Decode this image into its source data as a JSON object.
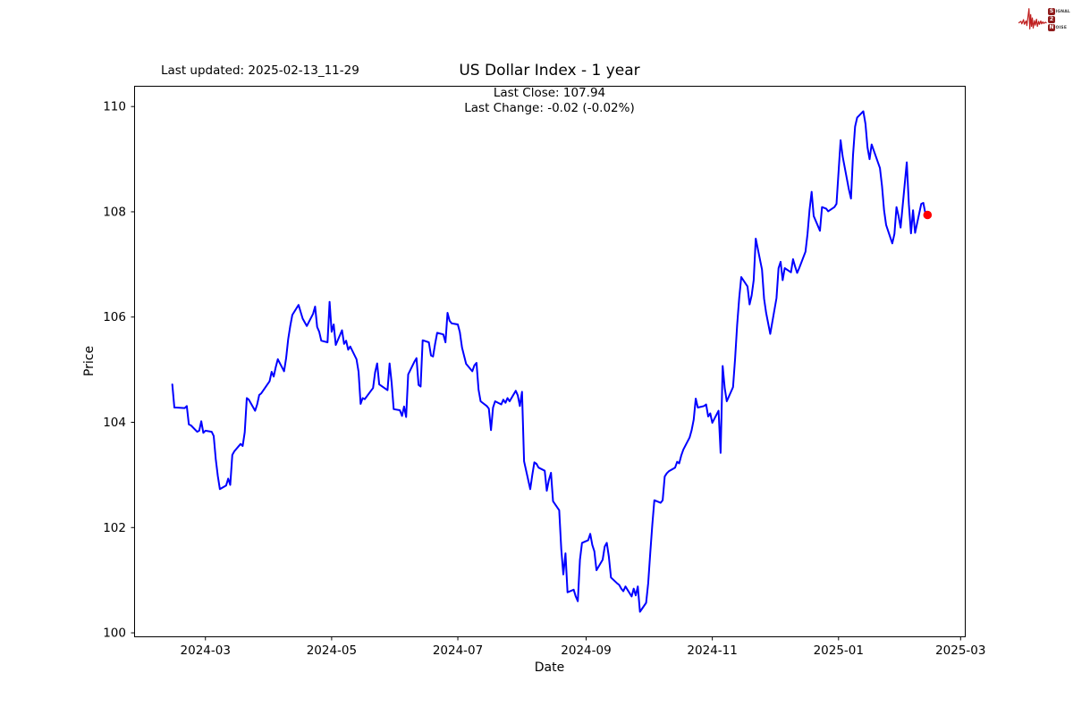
{
  "header": {
    "last_updated": "Last updated: 2025-02-13_11-29",
    "title": "US Dollar Index - 1 year",
    "subtitle_line1": "Last Close: 107.94",
    "subtitle_line2": "Last Change: -0.02 (-0.02%)"
  },
  "axes": {
    "xlabel": "Date",
    "ylabel": "Price"
  },
  "logo": {
    "rows": [
      {
        "badge": "S",
        "rest": "IGNAL"
      },
      {
        "badge": "2",
        "rest": ""
      },
      {
        "badge": "N",
        "rest": "OISE"
      }
    ],
    "colors": {
      "waveform": "#c01f1f",
      "badge_bg": "#8f1b1b",
      "text": "#3a3a3a"
    }
  },
  "chart_data": {
    "type": "line",
    "title": "US Dollar Index - 1 year",
    "xlabel": "Date",
    "ylabel": "Price",
    "legend": "none",
    "grid": false,
    "margins": 0.05,
    "line_color": "#0000ff",
    "last_point_color": "#ff0000",
    "axis_color": "#000000",
    "y_ticks": [
      100,
      102,
      104,
      106,
      108,
      110
    ],
    "x_ticks": [
      {
        "date": "2024-03-01",
        "label": "2024-03"
      },
      {
        "date": "2024-05-01",
        "label": "2024-05"
      },
      {
        "date": "2024-07-01",
        "label": "2024-07"
      },
      {
        "date": "2024-09-01",
        "label": "2024-09"
      },
      {
        "date": "2024-11-01",
        "label": "2024-11"
      },
      {
        "date": "2025-01-01",
        "label": "2025-01"
      },
      {
        "date": "2025-03-01",
        "label": "2025-03"
      }
    ],
    "series": [
      {
        "name": "price",
        "points": [
          [
            "2024-02-14",
            104.72
          ],
          [
            "2024-02-15",
            104.28
          ],
          [
            "2024-02-16",
            104.28
          ],
          [
            "2024-02-20",
            104.27
          ],
          [
            "2024-02-21",
            104.31
          ],
          [
            "2024-02-22",
            103.96
          ],
          [
            "2024-02-23",
            103.94
          ],
          [
            "2024-02-26",
            103.82
          ],
          [
            "2024-02-27",
            103.84
          ],
          [
            "2024-02-28",
            104.02
          ],
          [
            "2024-02-29",
            103.8
          ],
          [
            "2024-03-01",
            103.84
          ],
          [
            "2024-03-04",
            103.82
          ],
          [
            "2024-03-05",
            103.74
          ],
          [
            "2024-03-06",
            103.3
          ],
          [
            "2024-03-07",
            102.98
          ],
          [
            "2024-03-08",
            102.73
          ],
          [
            "2024-03-11",
            102.8
          ],
          [
            "2024-03-12",
            102.93
          ],
          [
            "2024-03-13",
            102.81
          ],
          [
            "2024-03-14",
            103.38
          ],
          [
            "2024-03-15",
            103.45
          ],
          [
            "2024-03-18",
            103.59
          ],
          [
            "2024-03-19",
            103.55
          ],
          [
            "2024-03-20",
            103.81
          ],
          [
            "2024-03-21",
            104.46
          ],
          [
            "2024-03-22",
            104.43
          ],
          [
            "2024-03-25",
            104.22
          ],
          [
            "2024-03-26",
            104.34
          ],
          [
            "2024-03-27",
            104.52
          ],
          [
            "2024-03-28",
            104.55
          ],
          [
            "2024-04-01",
            104.78
          ],
          [
            "2024-04-02",
            104.96
          ],
          [
            "2024-04-03",
            104.87
          ],
          [
            "2024-04-04",
            105.05
          ],
          [
            "2024-04-05",
            105.2
          ],
          [
            "2024-04-08",
            104.97
          ],
          [
            "2024-04-09",
            105.22
          ],
          [
            "2024-04-10",
            105.58
          ],
          [
            "2024-04-11",
            105.83
          ],
          [
            "2024-04-12",
            106.04
          ],
          [
            "2024-04-15",
            106.23
          ],
          [
            "2024-04-16",
            106.1
          ],
          [
            "2024-04-17",
            105.97
          ],
          [
            "2024-04-18",
            105.9
          ],
          [
            "2024-04-19",
            105.83
          ],
          [
            "2024-04-22",
            106.06
          ],
          [
            "2024-04-23",
            106.2
          ],
          [
            "2024-04-24",
            105.81
          ],
          [
            "2024-04-25",
            105.72
          ],
          [
            "2024-04-26",
            105.55
          ],
          [
            "2024-04-29",
            105.52
          ],
          [
            "2024-04-30",
            106.29
          ],
          [
            "2024-05-01",
            105.72
          ],
          [
            "2024-05-02",
            105.86
          ],
          [
            "2024-05-03",
            105.47
          ],
          [
            "2024-05-06",
            105.75
          ],
          [
            "2024-05-07",
            105.49
          ],
          [
            "2024-05-08",
            105.55
          ],
          [
            "2024-05-09",
            105.38
          ],
          [
            "2024-05-10",
            105.44
          ],
          [
            "2024-05-13",
            105.2
          ],
          [
            "2024-05-14",
            104.96
          ],
          [
            "2024-05-15",
            104.35
          ],
          [
            "2024-05-16",
            104.46
          ],
          [
            "2024-05-17",
            104.44
          ],
          [
            "2024-05-20",
            104.6
          ],
          [
            "2024-05-21",
            104.65
          ],
          [
            "2024-05-22",
            104.95
          ],
          [
            "2024-05-23",
            105.12
          ],
          [
            "2024-05-24",
            104.72
          ],
          [
            "2024-05-28",
            104.61
          ],
          [
            "2024-05-29",
            105.12
          ],
          [
            "2024-05-30",
            104.75
          ],
          [
            "2024-05-31",
            104.25
          ],
          [
            "2024-06-03",
            104.23
          ],
          [
            "2024-06-04",
            104.12
          ],
          [
            "2024-06-05",
            104.3
          ],
          [
            "2024-06-06",
            104.1
          ],
          [
            "2024-06-07",
            104.91
          ],
          [
            "2024-06-10",
            105.15
          ],
          [
            "2024-06-11",
            105.22
          ],
          [
            "2024-06-12",
            104.71
          ],
          [
            "2024-06-13",
            104.68
          ],
          [
            "2024-06-14",
            105.56
          ],
          [
            "2024-06-17",
            105.52
          ],
          [
            "2024-06-18",
            105.27
          ],
          [
            "2024-06-19",
            105.25
          ],
          [
            "2024-06-20",
            105.49
          ],
          [
            "2024-06-21",
            105.7
          ],
          [
            "2024-06-24",
            105.67
          ],
          [
            "2024-06-25",
            105.52
          ],
          [
            "2024-06-26",
            106.08
          ],
          [
            "2024-06-27",
            105.93
          ],
          [
            "2024-06-28",
            105.88
          ],
          [
            "2024-07-01",
            105.86
          ],
          [
            "2024-07-02",
            105.71
          ],
          [
            "2024-07-03",
            105.42
          ],
          [
            "2024-07-05",
            105.11
          ],
          [
            "2024-07-08",
            104.97
          ],
          [
            "2024-07-09",
            105.08
          ],
          [
            "2024-07-10",
            105.13
          ],
          [
            "2024-07-11",
            104.62
          ],
          [
            "2024-07-12",
            104.4
          ],
          [
            "2024-07-15",
            104.31
          ],
          [
            "2024-07-16",
            104.26
          ],
          [
            "2024-07-17",
            103.85
          ],
          [
            "2024-07-18",
            104.28
          ],
          [
            "2024-07-19",
            104.4
          ],
          [
            "2024-07-22",
            104.34
          ],
          [
            "2024-07-23",
            104.43
          ],
          [
            "2024-07-24",
            104.37
          ],
          [
            "2024-07-25",
            104.46
          ],
          [
            "2024-07-26",
            104.4
          ],
          [
            "2024-07-29",
            104.6
          ],
          [
            "2024-07-30",
            104.51
          ],
          [
            "2024-07-31",
            104.31
          ],
          [
            "2024-08-01",
            104.58
          ],
          [
            "2024-08-02",
            103.26
          ],
          [
            "2024-08-05",
            102.73
          ],
          [
            "2024-08-06",
            103.0
          ],
          [
            "2024-08-07",
            103.24
          ],
          [
            "2024-08-08",
            103.21
          ],
          [
            "2024-08-09",
            103.14
          ],
          [
            "2024-08-12",
            103.08
          ],
          [
            "2024-08-13",
            102.7
          ],
          [
            "2024-08-14",
            102.9
          ],
          [
            "2024-08-15",
            103.04
          ],
          [
            "2024-08-16",
            102.5
          ],
          [
            "2024-08-19",
            102.33
          ],
          [
            "2024-08-20",
            101.59
          ],
          [
            "2024-08-21",
            101.11
          ],
          [
            "2024-08-22",
            101.51
          ],
          [
            "2024-08-23",
            100.77
          ],
          [
            "2024-08-26",
            100.82
          ],
          [
            "2024-08-27",
            100.69
          ],
          [
            "2024-08-28",
            100.6
          ],
          [
            "2024-08-29",
            101.39
          ],
          [
            "2024-08-30",
            101.71
          ],
          [
            "2024-09-02",
            101.76
          ],
          [
            "2024-09-03",
            101.88
          ],
          [
            "2024-09-04",
            101.67
          ],
          [
            "2024-09-05",
            101.55
          ],
          [
            "2024-09-06",
            101.19
          ],
          [
            "2024-09-09",
            101.39
          ],
          [
            "2024-09-10",
            101.64
          ],
          [
            "2024-09-11",
            101.71
          ],
          [
            "2024-09-12",
            101.45
          ],
          [
            "2024-09-13",
            101.05
          ],
          [
            "2024-09-16",
            100.94
          ],
          [
            "2024-09-17",
            100.91
          ],
          [
            "2024-09-18",
            100.84
          ],
          [
            "2024-09-19",
            100.79
          ],
          [
            "2024-09-20",
            100.88
          ],
          [
            "2024-09-23",
            100.69
          ],
          [
            "2024-09-24",
            100.84
          ],
          [
            "2024-09-25",
            100.71
          ],
          [
            "2024-09-26",
            100.88
          ],
          [
            "2024-09-27",
            100.4
          ],
          [
            "2024-09-30",
            100.57
          ],
          [
            "2024-10-01",
            100.94
          ],
          [
            "2024-10-02",
            101.51
          ],
          [
            "2024-10-03",
            102.05
          ],
          [
            "2024-10-04",
            102.52
          ],
          [
            "2024-10-07",
            102.47
          ],
          [
            "2024-10-08",
            102.52
          ],
          [
            "2024-10-09",
            102.97
          ],
          [
            "2024-10-10",
            103.03
          ],
          [
            "2024-10-11",
            103.07
          ],
          [
            "2024-10-14",
            103.14
          ],
          [
            "2024-10-15",
            103.25
          ],
          [
            "2024-10-16",
            103.22
          ],
          [
            "2024-10-17",
            103.37
          ],
          [
            "2024-10-18",
            103.48
          ],
          [
            "2024-10-21",
            103.71
          ],
          [
            "2024-10-22",
            103.85
          ],
          [
            "2024-10-23",
            104.05
          ],
          [
            "2024-10-24",
            104.45
          ],
          [
            "2024-10-25",
            104.28
          ],
          [
            "2024-10-28",
            104.31
          ],
          [
            "2024-10-29",
            104.34
          ],
          [
            "2024-10-30",
            104.11
          ],
          [
            "2024-10-31",
            104.17
          ],
          [
            "2024-11-01",
            103.99
          ],
          [
            "2024-11-04",
            104.22
          ],
          [
            "2024-11-05",
            103.42
          ],
          [
            "2024-11-06",
            105.07
          ],
          [
            "2024-11-07",
            104.65
          ],
          [
            "2024-11-08",
            104.4
          ],
          [
            "2024-11-11",
            104.67
          ],
          [
            "2024-11-12",
            105.21
          ],
          [
            "2024-11-13",
            105.85
          ],
          [
            "2024-11-14",
            106.36
          ],
          [
            "2024-11-15",
            106.76
          ],
          [
            "2024-11-18",
            106.58
          ],
          [
            "2024-11-19",
            106.24
          ],
          [
            "2024-11-20",
            106.41
          ],
          [
            "2024-11-21",
            106.7
          ],
          [
            "2024-11-22",
            107.49
          ],
          [
            "2024-11-25",
            106.9
          ],
          [
            "2024-11-26",
            106.35
          ],
          [
            "2024-11-27",
            106.08
          ],
          [
            "2024-11-29",
            105.68
          ],
          [
            "2024-12-02",
            106.36
          ],
          [
            "2024-12-03",
            106.93
          ],
          [
            "2024-12-04",
            107.05
          ],
          [
            "2024-12-05",
            106.7
          ],
          [
            "2024-12-06",
            106.93
          ],
          [
            "2024-12-09",
            106.85
          ],
          [
            "2024-12-10",
            107.1
          ],
          [
            "2024-12-11",
            106.96
          ],
          [
            "2024-12-12",
            106.84
          ],
          [
            "2024-12-13",
            106.93
          ],
          [
            "2024-12-16",
            107.24
          ],
          [
            "2024-12-17",
            107.58
          ],
          [
            "2024-12-18",
            108.04
          ],
          [
            "2024-12-19",
            108.38
          ],
          [
            "2024-12-20",
            107.92
          ],
          [
            "2024-12-23",
            107.64
          ],
          [
            "2024-12-24",
            108.09
          ],
          [
            "2024-12-26",
            108.06
          ],
          [
            "2024-12-27",
            108.01
          ],
          [
            "2024-12-30",
            108.09
          ],
          [
            "2024-12-31",
            108.15
          ],
          [
            "2025-01-02",
            109.36
          ],
          [
            "2025-01-03",
            109.05
          ],
          [
            "2025-01-06",
            108.43
          ],
          [
            "2025-01-07",
            108.25
          ],
          [
            "2025-01-08",
            109.08
          ],
          [
            "2025-01-09",
            109.62
          ],
          [
            "2025-01-10",
            109.79
          ],
          [
            "2025-01-13",
            109.91
          ],
          [
            "2025-01-14",
            109.67
          ],
          [
            "2025-01-15",
            109.22
          ],
          [
            "2025-01-16",
            109.0
          ],
          [
            "2025-01-17",
            109.28
          ],
          [
            "2025-01-21",
            108.83
          ],
          [
            "2025-01-22",
            108.49
          ],
          [
            "2025-01-23",
            108.03
          ],
          [
            "2025-01-24",
            107.75
          ],
          [
            "2025-01-27",
            107.4
          ],
          [
            "2025-01-28",
            107.58
          ],
          [
            "2025-01-29",
            108.09
          ],
          [
            "2025-01-30",
            107.92
          ],
          [
            "2025-01-31",
            107.7
          ],
          [
            "2025-02-03",
            108.94
          ],
          [
            "2025-02-04",
            108.15
          ],
          [
            "2025-02-05",
            107.59
          ],
          [
            "2025-02-06",
            108.03
          ],
          [
            "2025-02-07",
            107.6
          ],
          [
            "2025-02-10",
            108.15
          ],
          [
            "2025-02-11",
            108.17
          ],
          [
            "2025-02-12",
            107.96
          ],
          [
            "2025-02-13",
            107.94
          ]
        ]
      }
    ]
  }
}
